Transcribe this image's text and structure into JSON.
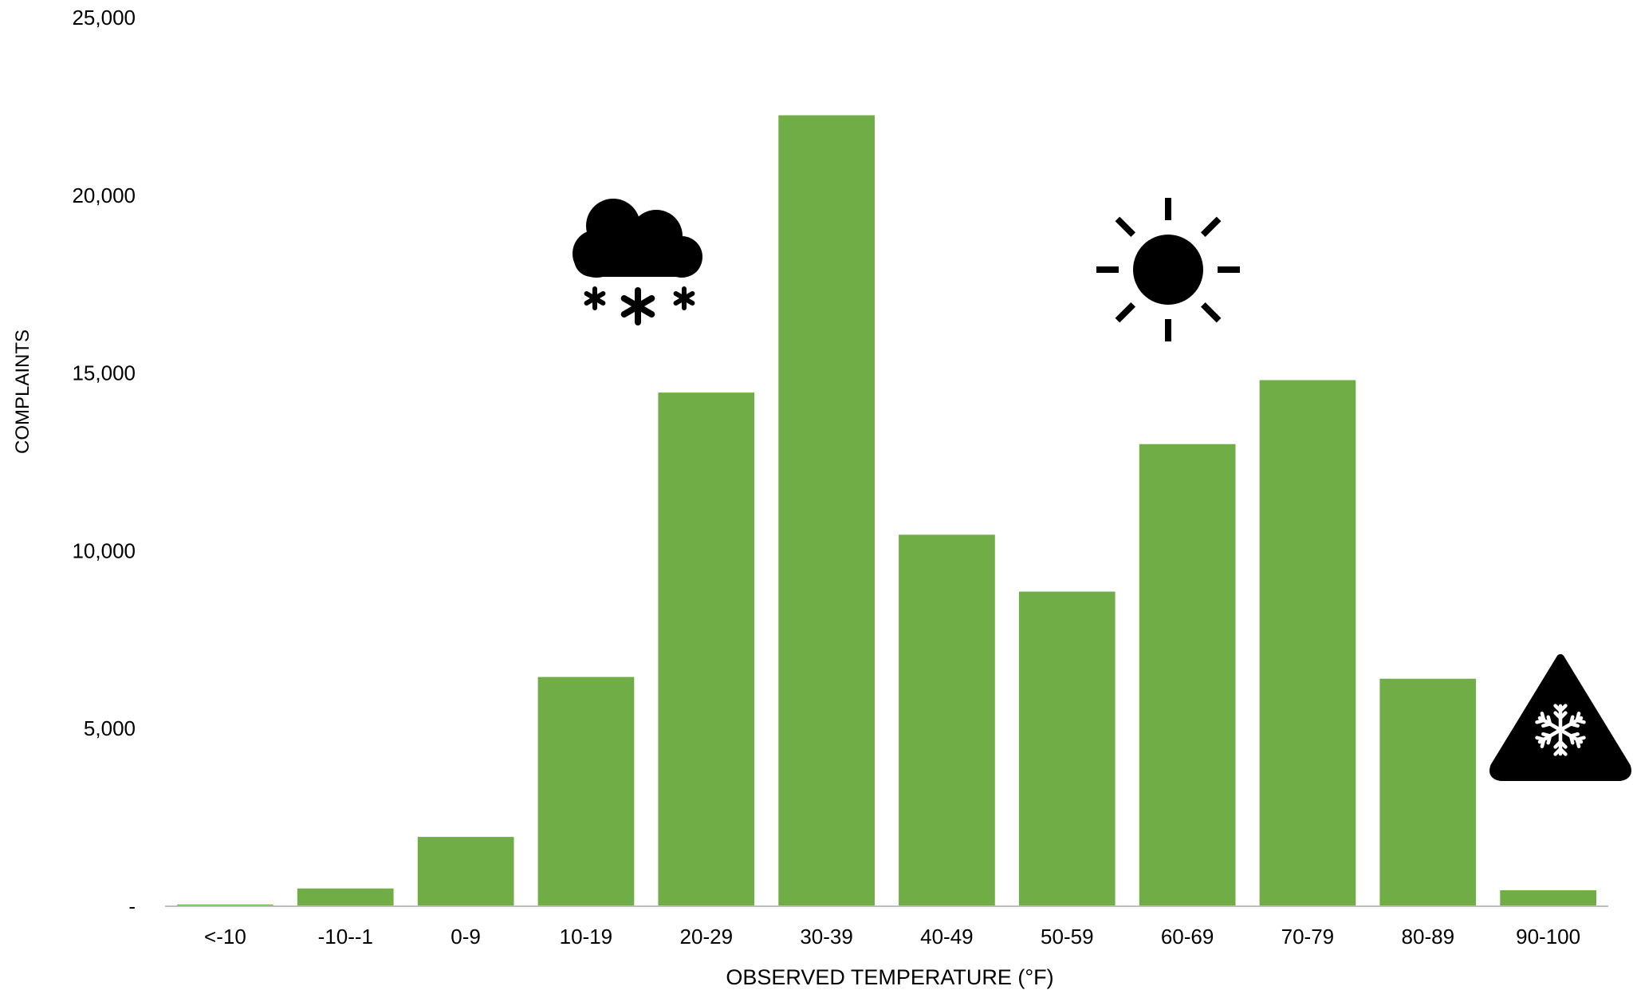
{
  "chart_data": {
    "type": "bar",
    "title": "",
    "xlabel": "OBSERVED TEMPERATURE (°F)",
    "ylabel": "COMPLAINTS",
    "categories": [
      "<-10",
      "-10--1",
      "0-9",
      "10-19",
      "20-29",
      "30-39",
      "40-49",
      "50-59",
      "60-69",
      "70-79",
      "80-89",
      "90-100"
    ],
    "values": [
      50,
      500,
      1950,
      6450,
      14450,
      22250,
      10450,
      8850,
      13000,
      14800,
      6400,
      450
    ],
    "ylim": [
      0,
      25000
    ],
    "yticks": [
      0,
      5000,
      10000,
      15000,
      20000,
      25000
    ],
    "ytick_labels": [
      "-",
      "5,000",
      "10,000",
      "15,000",
      "20,000",
      "25,000"
    ],
    "grid": false,
    "legend": "none",
    "bar_color": "#70ad47",
    "annotations": [
      {
        "icon": "snow-cloud-icon",
        "near_category": "20-29"
      },
      {
        "icon": "sun-icon",
        "near_category": "60-69"
      },
      {
        "icon": "freeze-warning-icon",
        "near_category": "90-100"
      }
    ]
  }
}
